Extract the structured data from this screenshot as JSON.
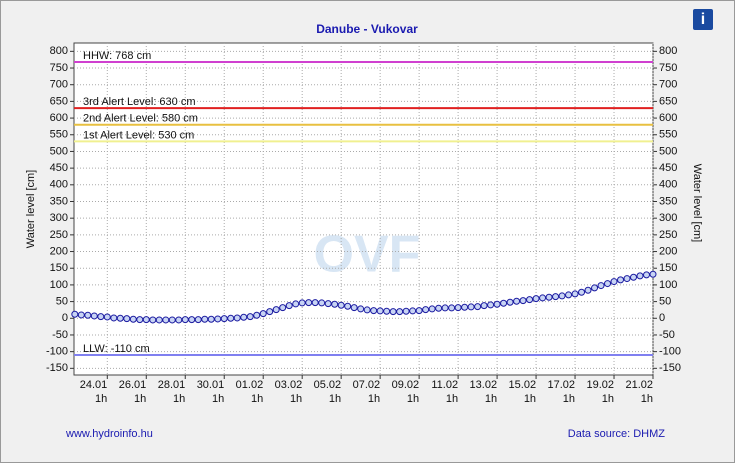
{
  "chart_data": {
    "type": "line",
    "title": "Danube - Vukovar",
    "y_label": "Water level [cm]",
    "y2_label": "Water level [cm]",
    "watermark": "OVF",
    "footer_left": "www.hydroinfo.hu",
    "footer_right": "Data source: DHMZ",
    "info_icon": "i",
    "xlim": [
      -41,
      672
    ],
    "ylim": [
      -170,
      825
    ],
    "grid": true,
    "xticks": [
      {
        "value": 0,
        "label": "24.01"
      },
      {
        "value": 48,
        "label": "26.01"
      },
      {
        "value": 96,
        "label": "28.01"
      },
      {
        "value": 144,
        "label": "30.01"
      },
      {
        "value": 192,
        "label": "01.02"
      },
      {
        "value": 240,
        "label": "03.02"
      },
      {
        "value": 288,
        "label": "05.02"
      },
      {
        "value": 336,
        "label": "07.02"
      },
      {
        "value": 384,
        "label": "09.02"
      },
      {
        "value": 432,
        "label": "11.02"
      },
      {
        "value": 480,
        "label": "13.02"
      },
      {
        "value": 528,
        "label": "15.02"
      },
      {
        "value": 576,
        "label": "17.02"
      },
      {
        "value": 624,
        "label": "19.02"
      },
      {
        "value": 672,
        "label": "21.02"
      }
    ],
    "xtick_sublabel": "1h",
    "yticks": [
      -150,
      -100,
      -50,
      0,
      50,
      100,
      150,
      200,
      250,
      300,
      350,
      400,
      450,
      500,
      550,
      600,
      650,
      700,
      750,
      800
    ],
    "reference_lines": [
      {
        "label": "HHW: 768 cm",
        "value": 768,
        "color": "#d040d0"
      },
      {
        "label": "3rd Alert Level: 630 cm",
        "value": 630,
        "color": "#e02020"
      },
      {
        "label": "2nd Alert Level: 580 cm",
        "value": 580,
        "color": "#e8c040"
      },
      {
        "label": "1st Alert Level: 530 cm",
        "value": 530,
        "color": "#f0f090"
      },
      {
        "label": "LLW: -110 cm",
        "value": -110,
        "color": "#8080f0"
      }
    ],
    "x": [
      -40,
      -32,
      -24,
      -16,
      -8,
      0,
      8,
      16,
      24,
      32,
      40,
      48,
      56,
      64,
      72,
      80,
      88,
      96,
      104,
      112,
      120,
      128,
      136,
      144,
      152,
      160,
      168,
      176,
      184,
      192,
      200,
      208,
      216,
      224,
      232,
      240,
      248,
      256,
      264,
      272,
      280,
      288,
      296,
      304,
      312,
      320,
      328,
      336,
      344,
      352,
      360,
      368,
      376,
      384,
      392,
      400,
      408,
      416,
      424,
      432,
      440,
      448,
      456,
      464,
      472,
      480,
      488,
      496,
      504,
      512,
      520,
      528,
      536,
      544,
      552,
      560,
      568,
      576,
      584,
      592,
      600,
      608,
      616,
      624,
      632,
      640,
      648,
      656,
      664,
      672
    ],
    "series": [
      {
        "color": "#1a1aa0",
        "values": [
          12,
          10,
          9,
          7,
          5,
          4,
          1,
          0,
          -1,
          -3,
          -4,
          -4,
          -5,
          -5,
          -5,
          -5,
          -5,
          -4,
          -4,
          -4,
          -3,
          -3,
          -2,
          -1,
          0,
          1,
          3,
          5,
          9,
          14,
          20,
          26,
          32,
          38,
          43,
          46,
          47,
          47,
          46,
          44,
          42,
          39,
          36,
          32,
          28,
          25,
          23,
          22,
          21,
          20,
          20,
          21,
          22,
          23,
          26,
          28,
          30,
          31,
          31,
          32,
          33,
          34,
          35,
          38,
          40,
          42,
          45,
          48,
          51,
          53,
          56,
          59,
          61,
          63,
          65,
          67,
          70,
          73,
          78,
          84,
          91,
          98,
          104,
          110,
          115,
          119,
          123,
          127,
          130,
          132
        ]
      }
    ]
  }
}
